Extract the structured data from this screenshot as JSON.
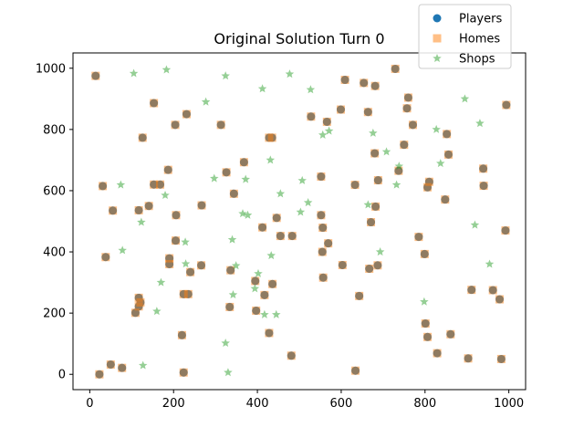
{
  "chart_data": {
    "type": "scatter",
    "title": "Original Solution Turn 0",
    "xlabel": "",
    "ylabel": "",
    "xlim": [
      -40,
      1040
    ],
    "ylim": [
      -50,
      1050
    ],
    "xticks": [
      0,
      200,
      400,
      600,
      800,
      1000
    ],
    "yticks": [
      0,
      200,
      400,
      600,
      800,
      1000
    ],
    "grid": false,
    "legend_position": "top-right",
    "series": [
      {
        "name": "Players",
        "marker": "circle",
        "color": "#1f77b4",
        "points": [
          [
            14,
            975
          ],
          [
            23,
            0
          ],
          [
            31,
            615
          ],
          [
            38,
            383
          ],
          [
            50,
            32
          ],
          [
            55,
            535
          ],
          [
            77,
            21
          ],
          [
            109,
            201
          ],
          [
            117,
            536
          ],
          [
            117,
            250
          ],
          [
            117,
            222
          ],
          [
            121,
            235
          ],
          [
            126,
            773
          ],
          [
            141,
            550
          ],
          [
            153,
            886
          ],
          [
            153,
            620
          ],
          [
            168,
            620
          ],
          [
            187,
            668
          ],
          [
            190,
            360
          ],
          [
            190,
            379
          ],
          [
            204,
            815
          ],
          [
            205,
            437
          ],
          [
            206,
            520
          ],
          [
            220,
            128
          ],
          [
            224,
            6
          ],
          [
            224,
            262
          ],
          [
            231,
            850
          ],
          [
            235,
            262
          ],
          [
            240,
            334
          ],
          [
            266,
            356
          ],
          [
            267,
            552
          ],
          [
            313,
            815
          ],
          [
            326,
            660
          ],
          [
            334,
            220
          ],
          [
            336,
            340
          ],
          [
            344,
            590
          ],
          [
            368,
            693
          ],
          [
            395,
            305
          ],
          [
            397,
            208
          ],
          [
            412,
            480
          ],
          [
            417,
            259
          ],
          [
            428,
            135
          ],
          [
            428,
            773
          ],
          [
            435,
            773
          ],
          [
            436,
            295
          ],
          [
            446,
            511
          ],
          [
            455,
            452
          ],
          [
            481,
            61
          ],
          [
            483,
            452
          ],
          [
            528,
            842
          ],
          [
            552,
            646
          ],
          [
            552,
            520
          ],
          [
            555,
            400
          ],
          [
            556,
            479
          ],
          [
            557,
            316
          ],
          [
            566,
            825
          ],
          [
            569,
            428
          ],
          [
            599,
            865
          ],
          [
            603,
            357
          ],
          [
            609,
            962
          ],
          [
            633,
            619
          ],
          [
            634,
            12
          ],
          [
            643,
            256
          ],
          [
            654,
            952
          ],
          [
            664,
            857
          ],
          [
            667,
            345
          ],
          [
            671,
            497
          ],
          [
            680,
            722
          ],
          [
            681,
            942
          ],
          [
            682,
            548
          ],
          [
            687,
            356
          ],
          [
            688,
            634
          ],
          [
            729,
            998
          ],
          [
            737,
            665
          ],
          [
            750,
            750
          ],
          [
            757,
            869
          ],
          [
            760,
            904
          ],
          [
            771,
            815
          ],
          [
            785,
            449
          ],
          [
            799,
            393
          ],
          [
            801,
            166
          ],
          [
            806,
            122
          ],
          [
            806,
            611
          ],
          [
            810,
            629
          ],
          [
            829,
            69
          ],
          [
            848,
            571
          ],
          [
            852,
            785
          ],
          [
            856,
            718
          ],
          [
            861,
            131
          ],
          [
            903,
            52
          ],
          [
            911,
            276
          ],
          [
            939,
            672
          ],
          [
            940,
            616
          ],
          [
            962,
            275
          ],
          [
            978,
            245
          ],
          [
            982,
            50
          ],
          [
            992,
            470
          ],
          [
            994,
            880
          ]
        ]
      },
      {
        "name": "Homes",
        "marker": "square",
        "color": "#ff7f0e",
        "points": [
          [
            14,
            975
          ],
          [
            23,
            0
          ],
          [
            31,
            615
          ],
          [
            38,
            383
          ],
          [
            50,
            32
          ],
          [
            55,
            535
          ],
          [
            77,
            21
          ],
          [
            109,
            201
          ],
          [
            117,
            536
          ],
          [
            117,
            250
          ],
          [
            117,
            222
          ],
          [
            121,
            235
          ],
          [
            126,
            773
          ],
          [
            141,
            550
          ],
          [
            153,
            886
          ],
          [
            153,
            620
          ],
          [
            168,
            620
          ],
          [
            187,
            668
          ],
          [
            190,
            360
          ],
          [
            190,
            379
          ],
          [
            204,
            815
          ],
          [
            205,
            437
          ],
          [
            206,
            520
          ],
          [
            220,
            128
          ],
          [
            224,
            6
          ],
          [
            224,
            262
          ],
          [
            231,
            850
          ],
          [
            235,
            262
          ],
          [
            240,
            334
          ],
          [
            266,
            356
          ],
          [
            267,
            552
          ],
          [
            313,
            815
          ],
          [
            326,
            660
          ],
          [
            334,
            220
          ],
          [
            336,
            340
          ],
          [
            344,
            590
          ],
          [
            368,
            693
          ],
          [
            395,
            305
          ],
          [
            397,
            208
          ],
          [
            412,
            480
          ],
          [
            417,
            259
          ],
          [
            428,
            135
          ],
          [
            428,
            773
          ],
          [
            435,
            773
          ],
          [
            436,
            295
          ],
          [
            446,
            511
          ],
          [
            455,
            452
          ],
          [
            481,
            61
          ],
          [
            483,
            452
          ],
          [
            528,
            842
          ],
          [
            552,
            646
          ],
          [
            552,
            520
          ],
          [
            555,
            400
          ],
          [
            556,
            479
          ],
          [
            557,
            316
          ],
          [
            566,
            825
          ],
          [
            569,
            428
          ],
          [
            599,
            865
          ],
          [
            603,
            357
          ],
          [
            609,
            962
          ],
          [
            633,
            619
          ],
          [
            634,
            12
          ],
          [
            643,
            256
          ],
          [
            654,
            952
          ],
          [
            664,
            857
          ],
          [
            667,
            345
          ],
          [
            671,
            497
          ],
          [
            680,
            722
          ],
          [
            681,
            942
          ],
          [
            682,
            548
          ],
          [
            687,
            356
          ],
          [
            688,
            634
          ],
          [
            729,
            998
          ],
          [
            737,
            665
          ],
          [
            750,
            750
          ],
          [
            757,
            869
          ],
          [
            760,
            904
          ],
          [
            771,
            815
          ],
          [
            785,
            449
          ],
          [
            799,
            393
          ],
          [
            801,
            166
          ],
          [
            806,
            122
          ],
          [
            806,
            611
          ],
          [
            810,
            629
          ],
          [
            829,
            69
          ],
          [
            848,
            571
          ],
          [
            852,
            785
          ],
          [
            856,
            718
          ],
          [
            861,
            131
          ],
          [
            903,
            52
          ],
          [
            911,
            276
          ],
          [
            939,
            672
          ],
          [
            940,
            616
          ],
          [
            962,
            275
          ],
          [
            978,
            245
          ],
          [
            982,
            50
          ],
          [
            992,
            470
          ],
          [
            994,
            880
          ]
        ]
      },
      {
        "name": "Shops",
        "marker": "star",
        "color": "#2ca02c",
        "points": [
          [
            105,
            983
          ],
          [
            183,
            995
          ],
          [
            277,
            890
          ],
          [
            324,
            975
          ],
          [
            412,
            933
          ],
          [
            477,
            981
          ],
          [
            527,
            930
          ],
          [
            895,
            900
          ],
          [
            931,
            820
          ],
          [
            827,
            800
          ],
          [
            556,
            782
          ],
          [
            571,
            795
          ],
          [
            676,
            788
          ],
          [
            708,
            727
          ],
          [
            837,
            689
          ],
          [
            738,
            680
          ],
          [
            732,
            619
          ],
          [
            431,
            700
          ],
          [
            372,
            637
          ],
          [
            297,
            640
          ],
          [
            74,
            619
          ],
          [
            180,
            585
          ],
          [
            455,
            590
          ],
          [
            507,
            633
          ],
          [
            521,
            561
          ],
          [
            503,
            530
          ],
          [
            664,
            554
          ],
          [
            365,
            525
          ],
          [
            377,
            520
          ],
          [
            228,
            432
          ],
          [
            123,
            497
          ],
          [
            340,
            440
          ],
          [
            919,
            488
          ],
          [
            433,
            388
          ],
          [
            78,
            405
          ],
          [
            349,
            355
          ],
          [
            229,
            361
          ],
          [
            693,
            400
          ],
          [
            402,
            329
          ],
          [
            954,
            360
          ],
          [
            798,
            237
          ],
          [
            170,
            300
          ],
          [
            160,
            206
          ],
          [
            342,
            260
          ],
          [
            394,
            280
          ],
          [
            417,
            195
          ],
          [
            445,
            195
          ],
          [
            324,
            102
          ],
          [
            127,
            29
          ],
          [
            330,
            6
          ]
        ]
      }
    ]
  }
}
